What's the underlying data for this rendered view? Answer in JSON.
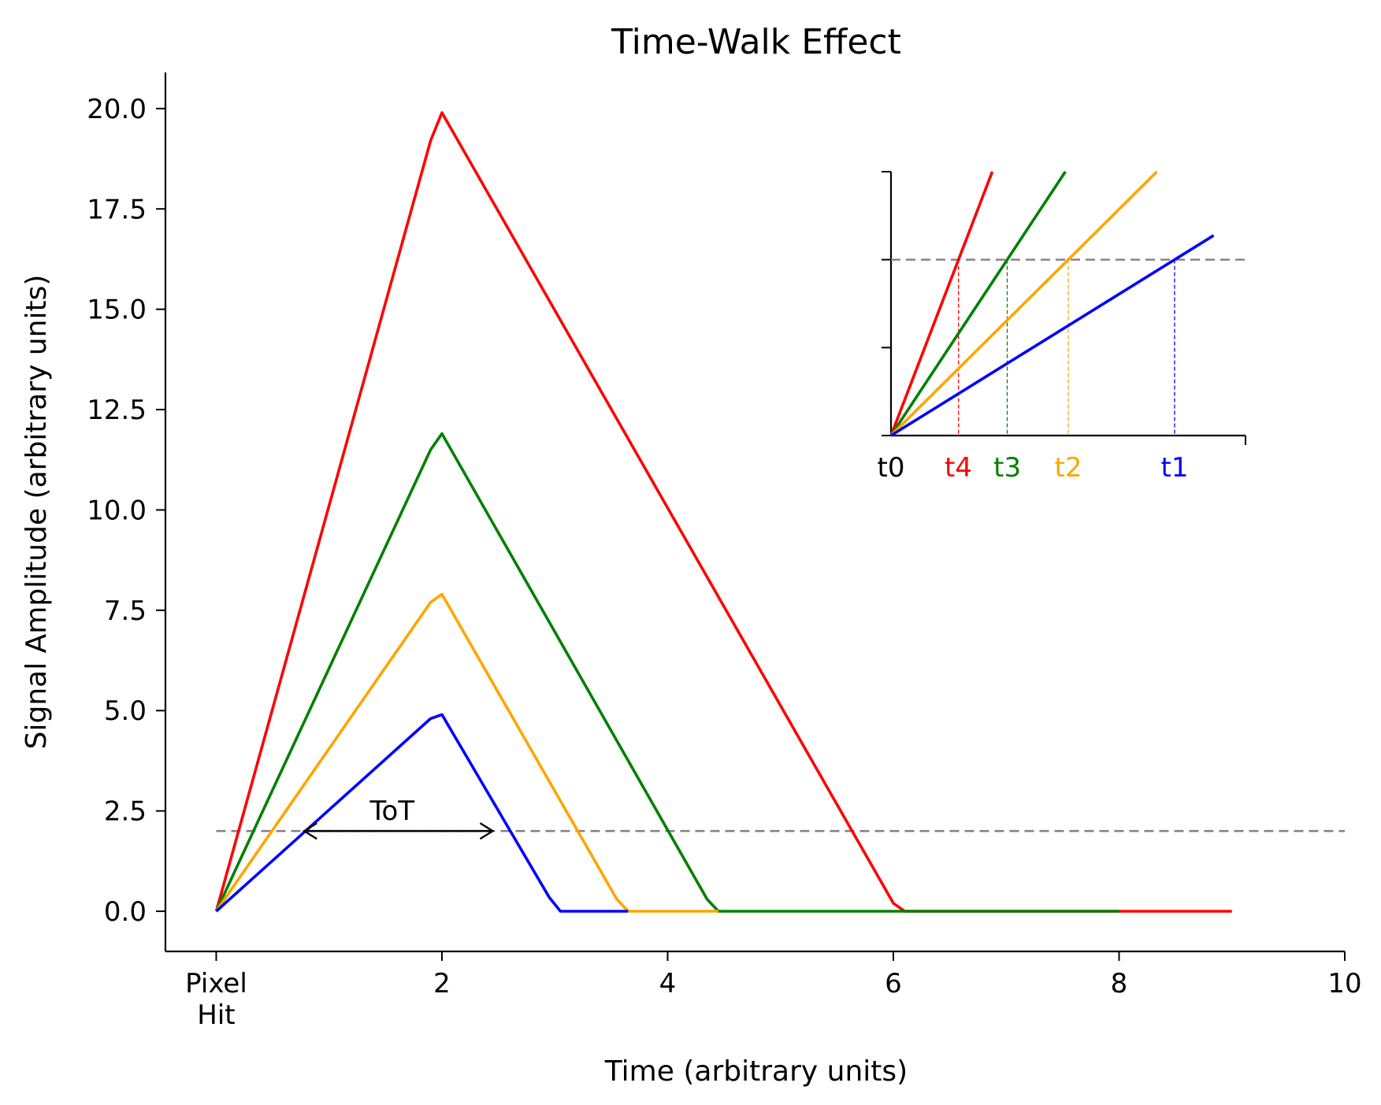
{
  "chart_data": {
    "type": "line",
    "title": "Time-Walk Effect",
    "xlabel": "Time (arbitrary units)",
    "ylabel": "Signal Amplitude (arbitrary units)",
    "xlim": [
      -0.45,
      10
    ],
    "ylim": [
      -1.0,
      20.9
    ],
    "xticks": [
      {
        "value": 0,
        "label": "Pixel\nHit"
      },
      {
        "value": 2,
        "label": "2"
      },
      {
        "value": 4,
        "label": "4"
      },
      {
        "value": 6,
        "label": "6"
      },
      {
        "value": 8,
        "label": "8"
      },
      {
        "value": 10,
        "label": "10"
      }
    ],
    "yticks": [
      {
        "value": 0,
        "label": "0.0"
      },
      {
        "value": 2.5,
        "label": "2.5"
      },
      {
        "value": 5,
        "label": "5.0"
      },
      {
        "value": 7.5,
        "label": "7.5"
      },
      {
        "value": 10,
        "label": "10.0"
      },
      {
        "value": 12.5,
        "label": "12.5"
      },
      {
        "value": 15,
        "label": "15.0"
      },
      {
        "value": 17.5,
        "label": "17.5"
      },
      {
        "value": 20,
        "label": "20.0"
      }
    ],
    "threshold": {
      "y": 2.0,
      "color": "#808080"
    },
    "series": [
      {
        "color": "#ff0000",
        "peak": 20,
        "fall_end": 6.1,
        "x_end": 9.0,
        "points": [
          [
            0,
            0
          ],
          [
            1.9,
            19.2
          ],
          [
            2.0,
            19.9
          ],
          [
            6.0,
            0.2
          ],
          [
            6.1,
            0
          ],
          [
            9.0,
            0
          ]
        ]
      },
      {
        "color": "#008000",
        "peak": 12,
        "fall_end": 4.45,
        "x_end": 8.0,
        "points": [
          [
            0,
            0
          ],
          [
            1.9,
            11.5
          ],
          [
            2.0,
            11.9
          ],
          [
            4.35,
            0.3
          ],
          [
            4.45,
            0
          ],
          [
            8.0,
            0
          ]
        ]
      },
      {
        "color": "#ffa500",
        "peak": 8,
        "fall_end": 3.65,
        "x_end": 4.45,
        "points": [
          [
            0,
            0
          ],
          [
            1.9,
            7.7
          ],
          [
            2.0,
            7.9
          ],
          [
            3.55,
            0.3
          ],
          [
            3.65,
            0
          ],
          [
            4.45,
            0
          ]
        ]
      },
      {
        "color": "#0000ff",
        "peak": 5,
        "fall_end": 3.05,
        "x_end": 3.65,
        "points": [
          [
            0,
            0
          ],
          [
            1.9,
            4.8
          ],
          [
            2.0,
            4.9
          ],
          [
            2.95,
            0.35
          ],
          [
            3.05,
            0
          ],
          [
            3.65,
            0
          ]
        ]
      }
    ],
    "annotation": {
      "text": "ToT",
      "x_start": 0.78,
      "x_end": 2.45,
      "y": 2.0
    },
    "inset": {
      "xlim": [
        0,
        5.0
      ],
      "ylim": [
        0,
        3.0
      ],
      "yticks": [
        0,
        1,
        2,
        3
      ],
      "threshold": 2.0,
      "lines": [
        {
          "color": "#ff0000",
          "slope": 2.1,
          "x_end": 1.5
        },
        {
          "color": "#008000",
          "slope": 1.22,
          "x_end": 2.5
        },
        {
          "color": "#ffa500",
          "slope": 0.8,
          "x_end": 3.75
        },
        {
          "color": "#0000ff",
          "slope": 0.5,
          "x_end": 4.55
        }
      ],
      "labels": [
        {
          "text": "t0",
          "x": 0.0,
          "color": "#000000"
        },
        {
          "text": "t4",
          "x": 0.95,
          "color": "#ff0000"
        },
        {
          "text": "t3",
          "x": 1.64,
          "color": "#008000"
        },
        {
          "text": "t2",
          "x": 2.5,
          "color": "#ffa500"
        },
        {
          "text": "t1",
          "x": 4.0,
          "color": "#0000ff"
        }
      ]
    }
  }
}
